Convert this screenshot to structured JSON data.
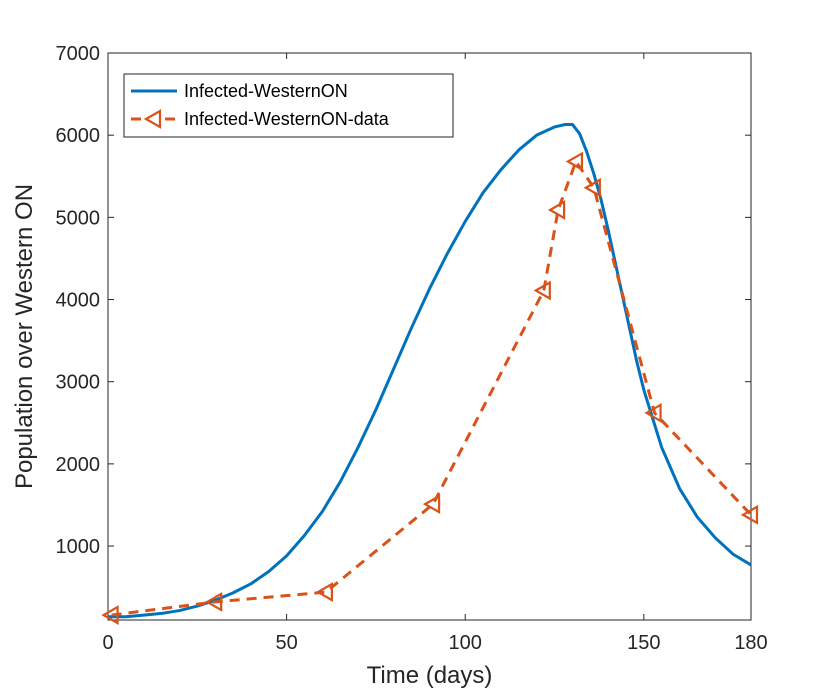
{
  "chart_data": {
    "type": "line",
    "title": "",
    "xlabel": "Time (days)",
    "ylabel": "Population over Western ON",
    "xlim": [
      0,
      180
    ],
    "ylim": [
      100,
      7000
    ],
    "x_ticks": [
      {
        "value": 0,
        "label": "0"
      },
      {
        "value": 50,
        "label": "50"
      },
      {
        "value": 100,
        "label": "100"
      },
      {
        "value": 150,
        "label": "150"
      },
      {
        "value": 180,
        "label": "180"
      }
    ],
    "y_ticks": [
      {
        "value": 1000,
        "label": "1000"
      },
      {
        "value": 2000,
        "label": "2000"
      },
      {
        "value": 3000,
        "label": "3000"
      },
      {
        "value": 4000,
        "label": "4000"
      },
      {
        "value": 5000,
        "label": "5000"
      },
      {
        "value": 6000,
        "label": "6000"
      },
      {
        "value": 7000,
        "label": "7000"
      }
    ],
    "grid": false,
    "legend_position": "top-left",
    "series": [
      {
        "name": "Infected-WesternON",
        "style": "solid",
        "color": "#0072BD",
        "x": [
          0,
          5,
          10,
          15,
          20,
          25,
          30,
          35,
          40,
          45,
          50,
          55,
          60,
          65,
          70,
          75,
          80,
          85,
          90,
          95,
          100,
          105,
          110,
          115,
          120,
          125,
          128,
          130,
          132,
          134,
          136,
          138,
          140,
          142,
          145,
          148,
          150,
          155,
          160,
          165,
          170,
          175,
          180
        ],
        "y": [
          140,
          140,
          160,
          180,
          215,
          270,
          340,
          430,
          540,
          690,
          880,
          1130,
          1420,
          1780,
          2200,
          2660,
          3160,
          3660,
          4130,
          4560,
          4950,
          5300,
          5580,
          5820,
          6000,
          6100,
          6130,
          6130,
          6020,
          5800,
          5530,
          5220,
          4850,
          4450,
          3850,
          3250,
          2900,
          2200,
          1700,
          1350,
          1100,
          900,
          770
        ]
      },
      {
        "name": "Infected-WesternON-data",
        "style": "dashed",
        "marker": "triangle-left",
        "color": "#D95319",
        "x": [
          1,
          30,
          61,
          91,
          122,
          126,
          131,
          136,
          153,
          180
        ],
        "y": [
          160,
          320,
          440,
          1510,
          4110,
          5090,
          5680,
          5360,
          2620,
          1380
        ]
      }
    ]
  }
}
